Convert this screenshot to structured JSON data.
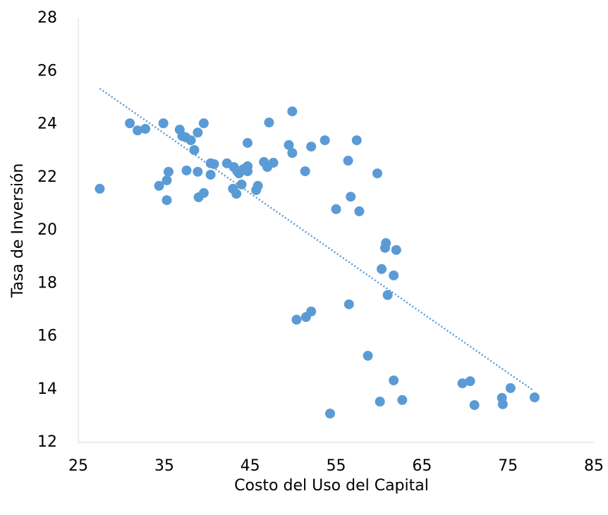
{
  "chart_data": {
    "type": "scatter",
    "x_label": "Costo del Uso del Capital",
    "y_label": "Tasa de Inversión",
    "color": "#5b9bd5",
    "xlim": [
      25,
      85
    ],
    "xticks": [
      25,
      35,
      45,
      55,
      65,
      75,
      85
    ],
    "ylim": [
      12,
      28
    ],
    "yticks": [
      12,
      14,
      16,
      18,
      20,
      22,
      24,
      26,
      28
    ],
    "x": [
      27.5,
      31.0,
      31.9,
      32.8,
      34.9,
      34.4,
      35.3,
      35.5,
      35.3,
      36.8,
      37.1,
      37.5,
      38.1,
      38.5,
      38.9,
      39.6,
      37.6,
      38.9,
      39.0,
      39.6,
      40.4,
      40.8,
      40.4,
      42.3,
      43.1,
      43.5,
      43.7,
      44.2,
      44.7,
      44.7,
      44.0,
      43.0,
      43.4,
      45.7,
      45.9,
      44.7,
      46.6,
      47.0,
      47.7,
      47.2,
      49.5,
      49.9,
      49.9,
      51.4,
      52.1,
      53.7,
      55.0,
      54.3,
      56.4,
      56.7,
      57.4,
      57.7,
      56.5,
      50.4,
      51.5,
      52.1,
      59.8,
      60.8,
      60.7,
      62.0,
      60.3,
      61.7,
      61.0,
      58.7,
      61.7,
      60.1,
      62.7,
      69.7,
      70.6,
      71.1,
      74.3,
      74.4,
      75.3,
      78.1
    ],
    "y": [
      21.57,
      24.04,
      23.77,
      23.83,
      24.04,
      21.68,
      21.89,
      22.21,
      21.14,
      23.8,
      23.56,
      23.51,
      23.4,
      23.03,
      23.69,
      24.04,
      22.26,
      22.21,
      21.25,
      21.41,
      22.53,
      22.5,
      22.1,
      22.53,
      22.39,
      22.23,
      22.15,
      22.31,
      22.42,
      22.23,
      21.73,
      21.57,
      21.38,
      21.52,
      21.68,
      23.3,
      22.58,
      22.39,
      22.55,
      24.07,
      23.22,
      22.92,
      24.49,
      22.23,
      23.16,
      23.4,
      20.8,
      13.09,
      22.63,
      21.27,
      23.4,
      20.72,
      17.21,
      16.63,
      16.73,
      16.94,
      22.15,
      19.52,
      19.34,
      19.26,
      18.54,
      18.3,
      17.56,
      15.27,
      14.34,
      13.54,
      13.6,
      14.23,
      14.31,
      13.41,
      13.68,
      13.44,
      14.05,
      13.7
    ],
    "trendline": {
      "x": [
        27.5,
        78
      ],
      "y": [
        25.35,
        13.95
      ]
    }
  }
}
